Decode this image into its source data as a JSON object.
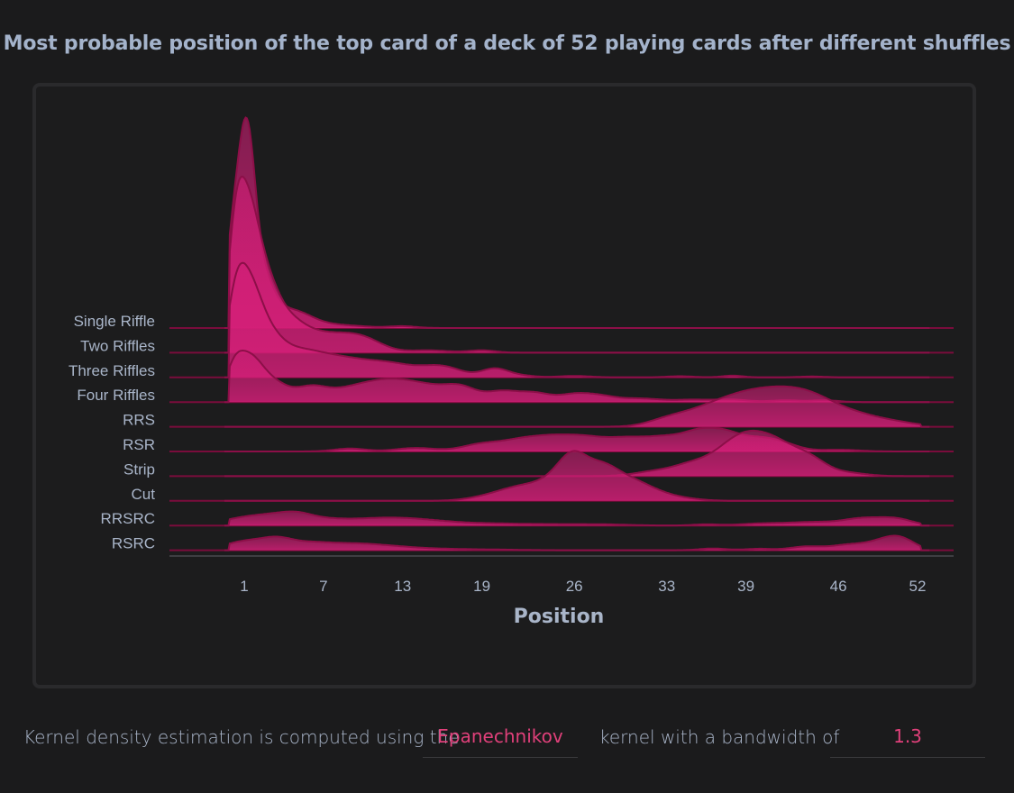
{
  "title": "Most probable position of the top card of a deck of 52 playing cards after different shuffles",
  "footer": {
    "text_before": "Kernel density estimation is computed using the",
    "kernel": "Epanechnikov",
    "text_middle": "kernel with a bandwidth of",
    "bandwidth": "1.3"
  },
  "colors": {
    "fill": "#d41f78",
    "stroke": "#8c0f48",
    "baseline": "#7a0c3c",
    "axis_text": "#a9b5c9"
  },
  "chart_data": {
    "type": "area",
    "subtype": "ridgeline",
    "title": "Most probable position of the top card of a deck of 52 playing cards after different shuffles",
    "xlabel": "Position",
    "ylabel": "",
    "x_ticks": [
      1,
      7,
      13,
      19,
      26,
      33,
      39,
      46,
      52
    ],
    "xlim": [
      -5,
      58
    ],
    "series": [
      {
        "name": "Single Riffle",
        "peaks": [
          [
            0.2,
            0.3,
            0.6
          ],
          [
            1.2,
            0.55,
            0.6
          ],
          [
            2.2,
            0.18,
            0.9
          ],
          [
            4.5,
            0.06,
            1.5
          ],
          [
            8,
            0.01,
            2
          ],
          [
            13,
            0.006,
            1
          ]
        ]
      },
      {
        "name": "Two Riffles",
        "peaks": [
          [
            0.3,
            0.3,
            0.6
          ],
          [
            1.2,
            0.38,
            0.8
          ],
          [
            2.4,
            0.2,
            1
          ],
          [
            4,
            0.1,
            1.4
          ],
          [
            7,
            0.06,
            2
          ],
          [
            10,
            0.04,
            1.5
          ],
          [
            15,
            0.008,
            1.5
          ],
          [
            19,
            0.008,
            1
          ]
        ]
      },
      {
        "name": "Three Riffles",
        "peaks": [
          [
            0.3,
            0.2,
            0.7
          ],
          [
            1.3,
            0.23,
            0.9
          ],
          [
            2.6,
            0.13,
            1.2
          ],
          [
            5,
            0.07,
            1.6
          ],
          [
            8,
            0.06,
            2
          ],
          [
            12,
            0.045,
            2
          ],
          [
            16,
            0.035,
            1.5
          ],
          [
            20,
            0.03,
            1
          ],
          [
            22,
            0.006,
            1
          ],
          [
            26,
            0.005,
            1.2
          ],
          [
            34,
            0.004,
            1
          ],
          [
            38,
            0.006,
            0.8
          ],
          [
            44,
            0.003,
            1
          ]
        ]
      },
      {
        "name": "Four Riffles",
        "peaks": [
          [
            0.2,
            0.1,
            0.7
          ],
          [
            1.4,
            0.12,
            0.9
          ],
          [
            3,
            0.07,
            1.2
          ],
          [
            6,
            0.045,
            1.2
          ],
          [
            9,
            0.04,
            1.8
          ],
          [
            12,
            0.06,
            1.8
          ],
          [
            15,
            0.045,
            1.8
          ],
          [
            17.5,
            0.04,
            1.2
          ],
          [
            20.5,
            0.035,
            1.2
          ],
          [
            23,
            0.03,
            1.2
          ],
          [
            26,
            0.025,
            1.2
          ],
          [
            28,
            0.018,
            1.2
          ],
          [
            31,
            0.012,
            1.5
          ],
          [
            35,
            0.008,
            1.5
          ],
          [
            38,
            0.008,
            1.2
          ],
          [
            42,
            0.006,
            1.2
          ],
          [
            45,
            0.006,
            1
          ]
        ]
      },
      {
        "name": "RRS",
        "peaks": [
          [
            33,
            0.02,
            1.5
          ],
          [
            36,
            0.05,
            2
          ],
          [
            39,
            0.08,
            2
          ],
          [
            42,
            0.09,
            2
          ],
          [
            44.5,
            0.06,
            1.8
          ],
          [
            47.5,
            0.035,
            1.8
          ],
          [
            50.5,
            0.012,
            1.5
          ],
          [
            54,
            0.003,
            1.5
          ]
        ]
      },
      {
        "name": "RSR",
        "peaks": [
          [
            9,
            0.01,
            1.2
          ],
          [
            14,
            0.012,
            1.5
          ],
          [
            19,
            0.025,
            1.5
          ],
          [
            22,
            0.035,
            1.5
          ],
          [
            24.5,
            0.04,
            1.5
          ],
          [
            27,
            0.04,
            1.5
          ],
          [
            30,
            0.04,
            1.5
          ],
          [
            33,
            0.045,
            1.5
          ],
          [
            35.5,
            0.055,
            1.2
          ],
          [
            37.5,
            0.055,
            1.2
          ],
          [
            40,
            0.04,
            1.3
          ],
          [
            42,
            0.02,
            1.2
          ],
          [
            46,
            0.006,
            1.5
          ]
        ]
      },
      {
        "name": "Strip",
        "peaks": [
          [
            32,
            0.015,
            1.5
          ],
          [
            35,
            0.04,
            1.5
          ],
          [
            38,
            0.09,
            1.5
          ],
          [
            40,
            0.09,
            1.5
          ],
          [
            42,
            0.07,
            1.5
          ],
          [
            44,
            0.04,
            1.2
          ],
          [
            46.5,
            0.012,
            1.5
          ]
        ]
      },
      {
        "name": "Cut",
        "peaks": [
          [
            19,
            0.008,
            1.5
          ],
          [
            21,
            0.025,
            1.5
          ],
          [
            23,
            0.04,
            1.5
          ],
          [
            25,
            0.065,
            1.2
          ],
          [
            26,
            0.09,
            1
          ],
          [
            27.8,
            0.085,
            1.2
          ],
          [
            29.5,
            0.06,
            1.5
          ],
          [
            31.5,
            0.03,
            1.5
          ],
          [
            34,
            0.008,
            1.5
          ]
        ]
      },
      {
        "name": "RRSRC",
        "peaks": [
          [
            0.5,
            0.02,
            1.5
          ],
          [
            3,
            0.03,
            1.5
          ],
          [
            5,
            0.028,
            1.2
          ],
          [
            7,
            0.016,
            1.5
          ],
          [
            10,
            0.017,
            2
          ],
          [
            13,
            0.018,
            2
          ],
          [
            16,
            0.01,
            2
          ],
          [
            20,
            0.006,
            2
          ],
          [
            24,
            0.004,
            2
          ],
          [
            28,
            0.004,
            2
          ],
          [
            36,
            0.004,
            1
          ],
          [
            40,
            0.006,
            1.5
          ],
          [
            44,
            0.012,
            2
          ],
          [
            48,
            0.024,
            1.5
          ],
          [
            50.5,
            0.02,
            1.2
          ]
        ]
      },
      {
        "name": "RSRC",
        "peaks": [
          [
            1,
            0.03,
            1.5
          ],
          [
            3.5,
            0.034,
            1.2
          ],
          [
            6,
            0.022,
            1.5
          ],
          [
            9,
            0.018,
            1.8
          ],
          [
            12,
            0.012,
            2
          ],
          [
            16,
            0.004,
            2
          ],
          [
            20,
            0.002,
            2
          ],
          [
            36.5,
            0.006,
            1
          ],
          [
            40,
            0.005,
            1
          ],
          [
            43.5,
            0.012,
            1.2
          ],
          [
            47,
            0.02,
            1.5
          ],
          [
            49.8,
            0.034,
            1.2
          ],
          [
            51,
            0.022,
            1
          ]
        ]
      }
    ]
  }
}
